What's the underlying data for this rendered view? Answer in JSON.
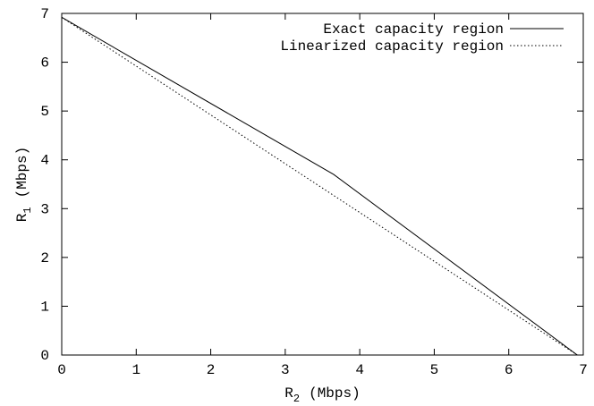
{
  "chart_data": {
    "type": "line",
    "title": "",
    "xlabel": {
      "base": "R",
      "sub": "2",
      "suffix": "(Mbps)"
    },
    "ylabel": {
      "base": "R",
      "sub": "1",
      "suffix": "(Mbps)"
    },
    "xlim": [
      0,
      7
    ],
    "ylim": [
      0,
      7
    ],
    "xticks": [
      0,
      1,
      2,
      3,
      4,
      5,
      6,
      7
    ],
    "yticks": [
      0,
      1,
      2,
      3,
      4,
      5,
      6,
      7
    ],
    "grid": false,
    "legend_position": "top-right",
    "series": [
      {
        "name": "Exact capacity region",
        "style": "solid",
        "color": "#000000",
        "points": [
          [
            0,
            6.92
          ],
          [
            3.65,
            3.7
          ],
          [
            6.92,
            0
          ]
        ]
      },
      {
        "name": "Linearized capacity region",
        "style": "dotted",
        "color": "#000000",
        "points": [
          [
            0,
            6.92
          ],
          [
            6.92,
            0
          ]
        ]
      }
    ]
  }
}
